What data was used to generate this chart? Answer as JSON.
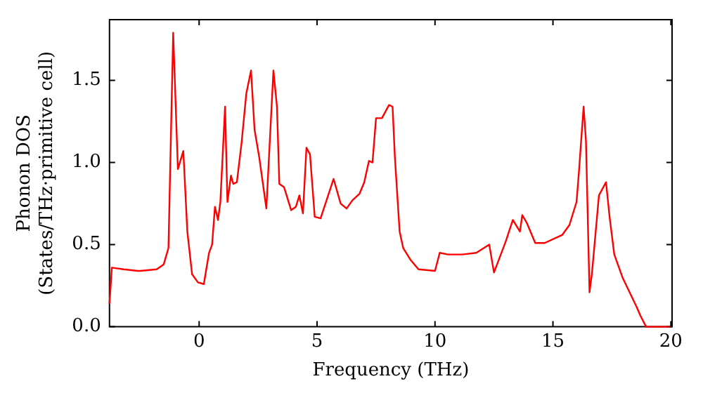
{
  "chart_data": {
    "type": "line",
    "xlabel": "Frequency (THz)",
    "ylabel": "Phonon DOS\n(States/THz·primitive cell)",
    "xlim": [
      -3.8,
      20.05
    ],
    "ylim": [
      0,
      1.87
    ],
    "xticks": [
      0,
      5,
      10,
      15,
      20
    ],
    "yticks": [
      {
        "value": 0,
        "label": "0.0"
      },
      {
        "value": 0.5,
        "label": "0.5"
      },
      {
        "value": 1,
        "label": "1.0"
      },
      {
        "value": 1.5,
        "label": "1.5"
      }
    ],
    "grid": false,
    "legend": false,
    "marker": "none",
    "line_style": "solid",
    "series": [
      {
        "color": "#ff0000",
        "x": [
          -3.8,
          -3.7,
          -3.2,
          -2.6,
          -2.5,
          -1.8,
          -1.5,
          -1.3,
          -1.1,
          -0.9,
          -0.67,
          -0.5,
          -0.3,
          -0.05,
          0.2,
          0.42,
          0.55,
          0.67,
          0.8,
          0.9,
          1.1,
          1.2,
          1.35,
          1.45,
          1.6,
          1.8,
          2.0,
          2.2,
          2.35,
          2.55,
          2.85,
          3.15,
          3.3,
          3.4,
          3.6,
          3.9,
          4.1,
          4.25,
          4.4,
          4.55,
          4.7,
          4.9,
          5.15,
          5.7,
          6.0,
          6.25,
          6.5,
          6.8,
          7.0,
          7.2,
          7.35,
          7.5,
          7.75,
          8.05,
          8.2,
          8.3,
          8.5,
          8.65,
          8.95,
          9.3,
          10.0,
          10.2,
          10.55,
          11.15,
          11.75,
          12.3,
          12.5,
          13.0,
          13.3,
          13.6,
          13.7,
          13.9,
          14.25,
          14.65,
          15.4,
          15.7,
          16.0,
          16.1,
          16.3,
          16.4,
          16.55,
          16.65,
          16.95,
          17.25,
          17.4,
          17.6,
          17.95,
          18.55,
          18.7,
          18.95,
          19.95
        ],
        "values": [
          0.14,
          0.36,
          0.35,
          0.34,
          0.34,
          0.35,
          0.38,
          0.48,
          1.79,
          0.96,
          1.07,
          0.58,
          0.32,
          0.27,
          0.26,
          0.45,
          0.5,
          0.73,
          0.65,
          0.76,
          1.34,
          0.76,
          0.92,
          0.87,
          0.88,
          1.12,
          1.42,
          1.56,
          1.2,
          1.03,
          0.72,
          1.56,
          1.34,
          0.87,
          0.85,
          0.71,
          0.73,
          0.8,
          0.69,
          1.09,
          1.05,
          0.67,
          0.66,
          0.9,
          0.75,
          0.72,
          0.77,
          0.81,
          0.88,
          1.01,
          1.0,
          1.27,
          1.27,
          1.35,
          1.34,
          1.03,
          0.58,
          0.48,
          0.41,
          0.35,
          0.34,
          0.45,
          0.44,
          0.44,
          0.45,
          0.5,
          0.33,
          0.52,
          0.65,
          0.58,
          0.68,
          0.63,
          0.51,
          0.51,
          0.56,
          0.62,
          0.76,
          0.94,
          1.34,
          1.13,
          0.21,
          0.32,
          0.8,
          0.88,
          0.67,
          0.44,
          0.3,
          0.12,
          0.07,
          0,
          0
        ]
      }
    ]
  }
}
